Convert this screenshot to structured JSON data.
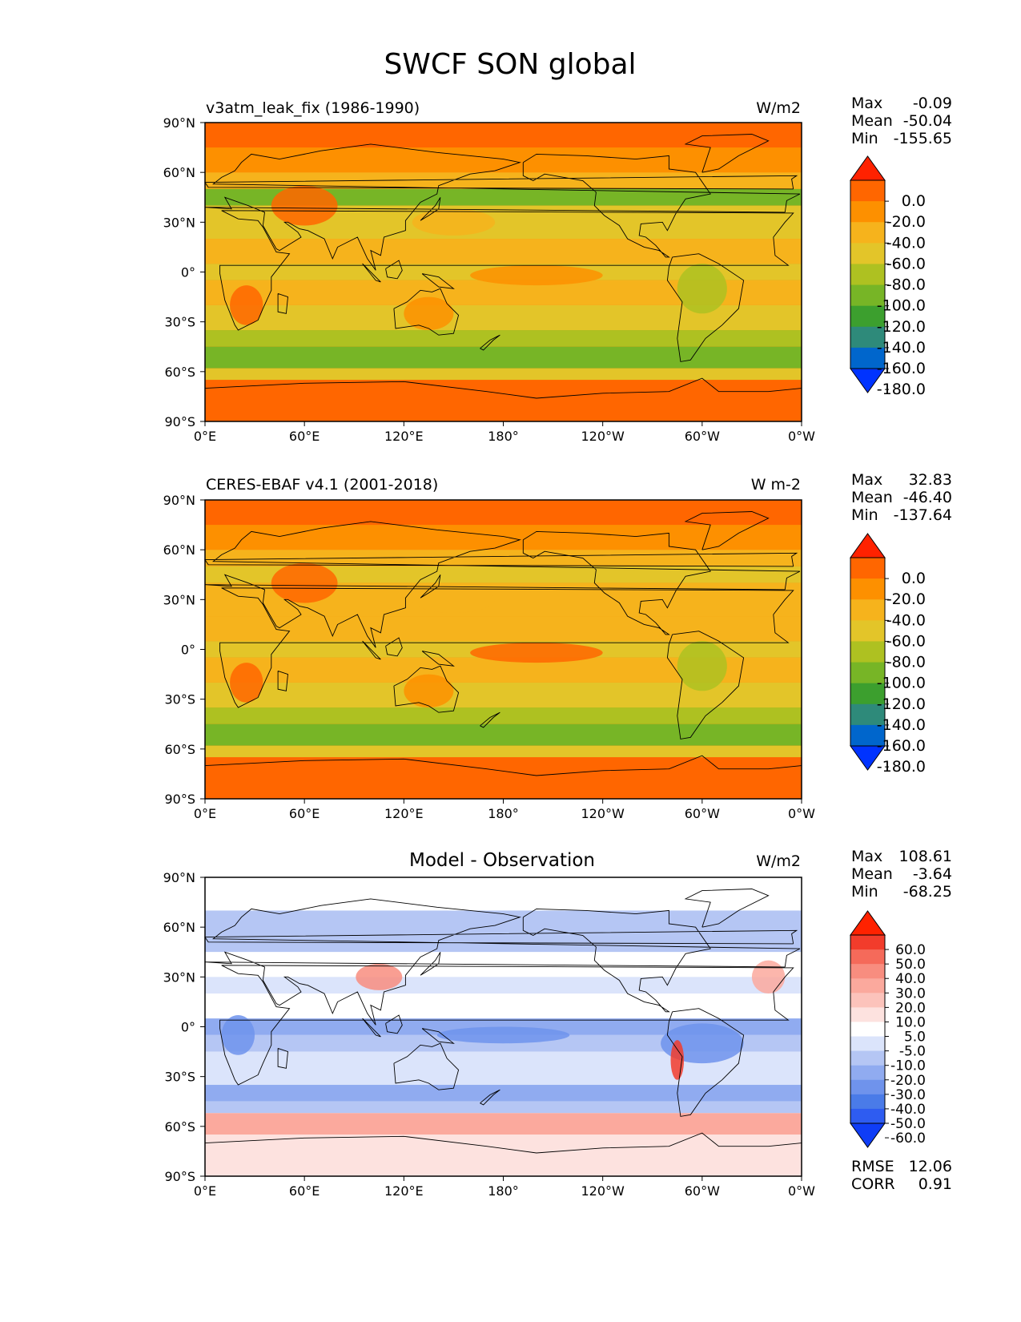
{
  "figure": {
    "title": "SWCF SON global"
  },
  "colors": {
    "abs": [
      "#0033ff",
      "#0066cc",
      "#2e8a7a",
      "#3c9f2e",
      "#77b526",
      "#aec121",
      "#e3c529",
      "#f6b31c",
      "#fd9000",
      "#ff6600",
      "#ff2200"
    ],
    "diff": [
      "#0f3df6",
      "#2e5cf1",
      "#4a7be8",
      "#6f93ec",
      "#90abf0",
      "#b5c6f4",
      "#dbe4fb",
      "#ffffff",
      "#fde2df",
      "#fcc3bb",
      "#fba99d",
      "#f88d7f",
      "#f56a5a",
      "#f23c2b",
      "#ff2200"
    ],
    "coast": "#000000"
  },
  "chart_data": [
    {
      "type": "heatmap",
      "name": "model",
      "title": "v3atm_leak_fix (1986-1990)",
      "units": "W/m2",
      "xticks": [
        "0°E",
        "60°E",
        "120°E",
        "180°",
        "120°W",
        "60°W",
        "0°W"
      ],
      "yticks": [
        "90°N",
        "60°N",
        "30°N",
        "0°",
        "30°S",
        "60°S",
        "90°S"
      ],
      "xlim": [
        0,
        360
      ],
      "ylim": [
        -90,
        90
      ],
      "stats": [
        {
          "label": "Max",
          "value": "-0.09"
        },
        {
          "label": "Mean",
          "value": "-50.04"
        },
        {
          "label": "Min",
          "value": "-155.65"
        }
      ],
      "colorbar": {
        "levels": [
          "0.0",
          "-20.0",
          "-40.0",
          "-60.0",
          "-80.0",
          "-100.0",
          "-120.0",
          "-140.0",
          "-160.0",
          "-180.0"
        ],
        "palette": "abs"
      }
    },
    {
      "type": "heatmap",
      "name": "obs",
      "title": "CERES-EBAF v4.1 (2001-2018)",
      "units": "W m-2",
      "xticks": [
        "0°E",
        "60°E",
        "120°E",
        "180°",
        "120°W",
        "60°W",
        "0°W"
      ],
      "yticks": [
        "90°N",
        "60°N",
        "30°N",
        "0°",
        "30°S",
        "60°S",
        "90°S"
      ],
      "xlim": [
        0,
        360
      ],
      "ylim": [
        -90,
        90
      ],
      "stats": [
        {
          "label": "Max",
          "value": "32.83"
        },
        {
          "label": "Mean",
          "value": "-46.40"
        },
        {
          "label": "Min",
          "value": "-137.64"
        }
      ],
      "colorbar": {
        "levels": [
          "0.0",
          "-20.0",
          "-40.0",
          "-60.0",
          "-80.0",
          "-100.0",
          "-120.0",
          "-140.0",
          "-160.0",
          "-180.0"
        ],
        "palette": "abs"
      }
    },
    {
      "type": "heatmap",
      "name": "diff",
      "title": "Model - Observation",
      "units": "W/m2",
      "xticks": [
        "0°E",
        "60°E",
        "120°E",
        "180°",
        "120°W",
        "60°W",
        "0°W"
      ],
      "yticks": [
        "90°N",
        "60°N",
        "30°N",
        "0°",
        "30°S",
        "60°S",
        "90°S"
      ],
      "xlim": [
        0,
        360
      ],
      "ylim": [
        -90,
        90
      ],
      "stats": [
        {
          "label": "Max",
          "value": "108.61"
        },
        {
          "label": "Mean",
          "value": "-3.64"
        },
        {
          "label": "Min",
          "value": "-68.25"
        }
      ],
      "extra_stats": [
        {
          "label": "RMSE",
          "value": "12.06"
        },
        {
          "label": "CORR",
          "value": "0.91"
        }
      ],
      "colorbar": {
        "levels": [
          "60.0",
          "50.0",
          "40.0",
          "30.0",
          "20.0",
          "10.0",
          "5.0",
          "-5.0",
          "-10.0",
          "-20.0",
          "-30.0",
          "-40.0",
          "-50.0",
          "-60.0"
        ],
        "palette": "diff"
      }
    }
  ]
}
